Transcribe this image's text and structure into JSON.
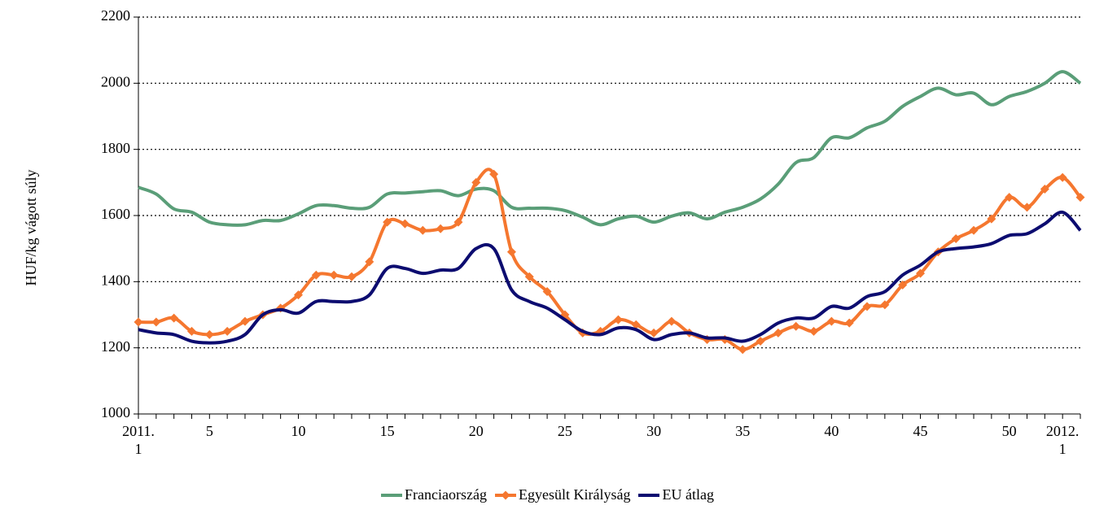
{
  "chart_data": {
    "type": "line",
    "y_label": "HUF/kg vágott súly",
    "categories": [
      "2011.\n1",
      null,
      null,
      null,
      "5",
      null,
      null,
      null,
      null,
      "10",
      null,
      null,
      null,
      null,
      "15",
      null,
      null,
      null,
      null,
      "20",
      null,
      null,
      null,
      null,
      "25",
      null,
      null,
      null,
      null,
      "30",
      null,
      null,
      null,
      null,
      "35",
      null,
      null,
      null,
      null,
      "40",
      null,
      null,
      null,
      null,
      "45",
      null,
      null,
      null,
      null,
      "50",
      null,
      null,
      "2012.\n1",
      null
    ],
    "series": [
      {
        "name": "Franciaország",
        "color": "#5a9e78",
        "marker": false,
        "values": [
          1685,
          1665,
          1620,
          1610,
          1580,
          1572,
          1572,
          1585,
          1585,
          1605,
          1630,
          1630,
          1622,
          1625,
          1665,
          1668,
          1672,
          1675,
          1660,
          1680,
          1675,
          1625,
          1622,
          1622,
          1615,
          1595,
          1572,
          1590,
          1598,
          1580,
          1598,
          1608,
          1590,
          1610,
          1625,
          1650,
          1695,
          1760,
          1775,
          1835,
          1835,
          1865,
          1885,
          1930,
          1960,
          1985,
          1965,
          1970,
          1935,
          1960,
          1975,
          2000,
          2035,
          2000
        ]
      },
      {
        "name": "Egyesült Királyság",
        "color": "#f5772f",
        "marker": true,
        "values": [
          1278,
          1278,
          1290,
          1250,
          1240,
          1250,
          1280,
          1300,
          1320,
          1360,
          1420,
          1420,
          1415,
          1460,
          1580,
          1575,
          1555,
          1560,
          1580,
          1700,
          1725,
          1490,
          1415,
          1370,
          1300,
          1245,
          1250,
          1285,
          1270,
          1245,
          1280,
          1245,
          1225,
          1225,
          1195,
          1220,
          1245,
          1265,
          1250,
          1280,
          1275,
          1325,
          1330,
          1390,
          1425,
          1490,
          1530,
          1555,
          1590,
          1655,
          1625,
          1680,
          1715,
          1655
        ]
      },
      {
        "name": "EU átlag",
        "color": "#0c0c70",
        "marker": false,
        "values": [
          1255,
          1245,
          1240,
          1220,
          1215,
          1220,
          1240,
          1300,
          1315,
          1305,
          1340,
          1340,
          1340,
          1360,
          1440,
          1440,
          1425,
          1435,
          1440,
          1500,
          1500,
          1375,
          1340,
          1320,
          1285,
          1250,
          1240,
          1260,
          1255,
          1225,
          1240,
          1245,
          1230,
          1230,
          1220,
          1240,
          1275,
          1290,
          1290,
          1325,
          1320,
          1355,
          1370,
          1420,
          1450,
          1490,
          1500,
          1505,
          1515,
          1540,
          1545,
          1575,
          1610,
          1555
        ]
      }
    ],
    "ylim": [
      1000,
      2200
    ],
    "yticks": [
      1000,
      1200,
      1400,
      1600,
      1800,
      2000,
      2200
    ],
    "grid": true,
    "legend": "bottom"
  }
}
